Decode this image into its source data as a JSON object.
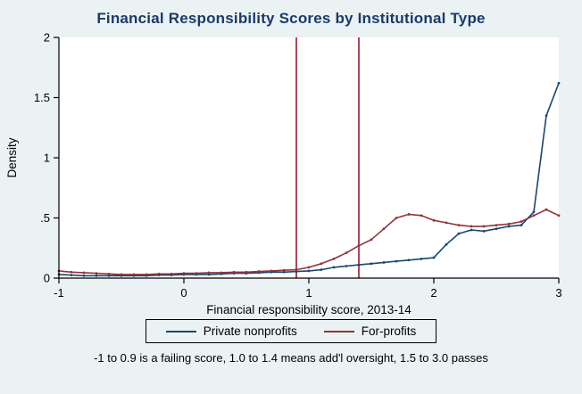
{
  "title": "Financial Responsibility Scores by Institutional Type",
  "note": "-1 to 0.9 is a failing score, 1.0 to 1.4 means add'l oversight, 1.5 to 3.0 passes",
  "colors": {
    "background": "#eaf2f3",
    "title": "#1a3a6b",
    "navy": "#1a476f",
    "maroon": "#90353b",
    "reference_line": "#a0253f",
    "axis": "#000000"
  },
  "chart_data": {
    "type": "line",
    "title": "Financial Responsibility Scores by Institutional Type",
    "xlabel": "Financial responsibility score, 2013-14",
    "ylabel": "Density",
    "xlim": [
      -1,
      3
    ],
    "ylim": [
      0,
      2
    ],
    "xticks": [
      "-1",
      "0",
      "1",
      "2",
      "3"
    ],
    "xtick_values": [
      -1,
      0,
      1,
      2,
      3
    ],
    "yticks": [
      "0",
      ".5",
      "1",
      "1.5",
      "2"
    ],
    "ytick_values": [
      0,
      0.5,
      1,
      1.5,
      2
    ],
    "grid": false,
    "legend_position": "bottom",
    "x": [
      -1.0,
      -0.9,
      -0.8,
      -0.7,
      -0.6,
      -0.5,
      -0.4,
      -0.3,
      -0.2,
      -0.1,
      0.0,
      0.1,
      0.2,
      0.3,
      0.4,
      0.5,
      0.6,
      0.7,
      0.8,
      0.9,
      1.0,
      1.1,
      1.2,
      1.3,
      1.4,
      1.5,
      1.6,
      1.7,
      1.8,
      1.9,
      2.0,
      2.1,
      2.2,
      2.3,
      2.4,
      2.5,
      2.6,
      2.7,
      2.8,
      2.9,
      3.0
    ],
    "series": [
      {
        "name": "Private nonprofits",
        "color": "#1a476f",
        "values": [
          0.03,
          0.025,
          0.02,
          0.02,
          0.02,
          0.02,
          0.02,
          0.02,
          0.025,
          0.025,
          0.03,
          0.03,
          0.03,
          0.035,
          0.04,
          0.04,
          0.045,
          0.05,
          0.05,
          0.055,
          0.06,
          0.07,
          0.09,
          0.1,
          0.11,
          0.12,
          0.13,
          0.14,
          0.15,
          0.16,
          0.17,
          0.28,
          0.37,
          0.4,
          0.39,
          0.41,
          0.43,
          0.44,
          0.55,
          1.35,
          1.62
        ]
      },
      {
        "name": "For-profits",
        "color": "#90353b",
        "values": [
          0.06,
          0.05,
          0.045,
          0.04,
          0.035,
          0.03,
          0.03,
          0.03,
          0.035,
          0.035,
          0.04,
          0.04,
          0.045,
          0.045,
          0.05,
          0.05,
          0.055,
          0.06,
          0.065,
          0.07,
          0.09,
          0.12,
          0.16,
          0.21,
          0.27,
          0.32,
          0.41,
          0.5,
          0.53,
          0.52,
          0.48,
          0.46,
          0.44,
          0.43,
          0.43,
          0.44,
          0.45,
          0.47,
          0.52,
          0.57,
          0.52
        ]
      }
    ],
    "reference_lines": {
      "color": "#a0253f",
      "x_values": [
        0.9,
        1.4
      ]
    }
  }
}
